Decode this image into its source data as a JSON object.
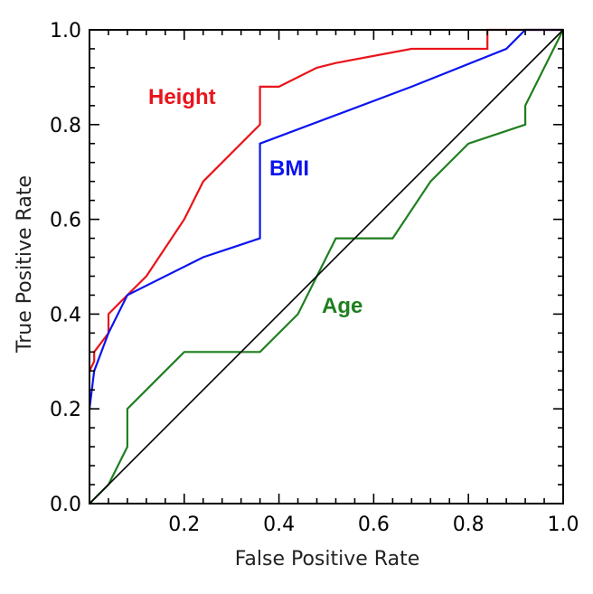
{
  "chart_data": {
    "type": "line",
    "title": "",
    "xlabel": "False Positive Rate",
    "ylabel": "True Positive Rate",
    "xlim": [
      0,
      1
    ],
    "ylim": [
      0,
      1
    ],
    "xticks": [
      "0.2",
      "0.4",
      "0.6",
      "0.8",
      "1.0"
    ],
    "yticks": [
      "0.0",
      "0.2",
      "0.4",
      "0.6",
      "0.8",
      "1.0"
    ],
    "grid": false,
    "series": [
      {
        "name": "Height",
        "color": "#e8141b",
        "x": [
          0.0,
          0.0,
          0.01,
          0.01,
          0.04,
          0.04,
          0.08,
          0.12,
          0.2,
          0.24,
          0.36,
          0.36,
          0.4,
          0.48,
          0.52,
          0.68,
          0.84,
          0.84,
          1.0
        ],
        "y": [
          0.28,
          0.28,
          0.3,
          0.32,
          0.36,
          0.4,
          0.44,
          0.48,
          0.6,
          0.68,
          0.8,
          0.88,
          0.88,
          0.92,
          0.93,
          0.96,
          0.96,
          1.0,
          1.0
        ]
      },
      {
        "name": "BMI",
        "color": "#0a14f0",
        "x": [
          0.0,
          0.01,
          0.04,
          0.04,
          0.08,
          0.24,
          0.36,
          0.36,
          0.68,
          0.88,
          0.92,
          1.0
        ],
        "y": [
          0.2,
          0.28,
          0.36,
          0.36,
          0.44,
          0.52,
          0.56,
          0.76,
          0.88,
          0.96,
          1.0,
          1.0
        ]
      },
      {
        "name": "Age",
        "color": "#1f7f1f",
        "x": [
          0.0,
          0.04,
          0.08,
          0.08,
          0.16,
          0.2,
          0.36,
          0.44,
          0.52,
          0.64,
          0.72,
          0.8,
          0.92,
          0.92,
          1.0
        ],
        "y": [
          0.0,
          0.04,
          0.12,
          0.2,
          0.28,
          0.32,
          0.32,
          0.4,
          0.56,
          0.56,
          0.68,
          0.76,
          0.8,
          0.84,
          1.0
        ]
      },
      {
        "color": "#000000",
        "x": [
          0.0,
          1.0
        ],
        "y": [
          0.0,
          1.0
        ]
      }
    ]
  }
}
